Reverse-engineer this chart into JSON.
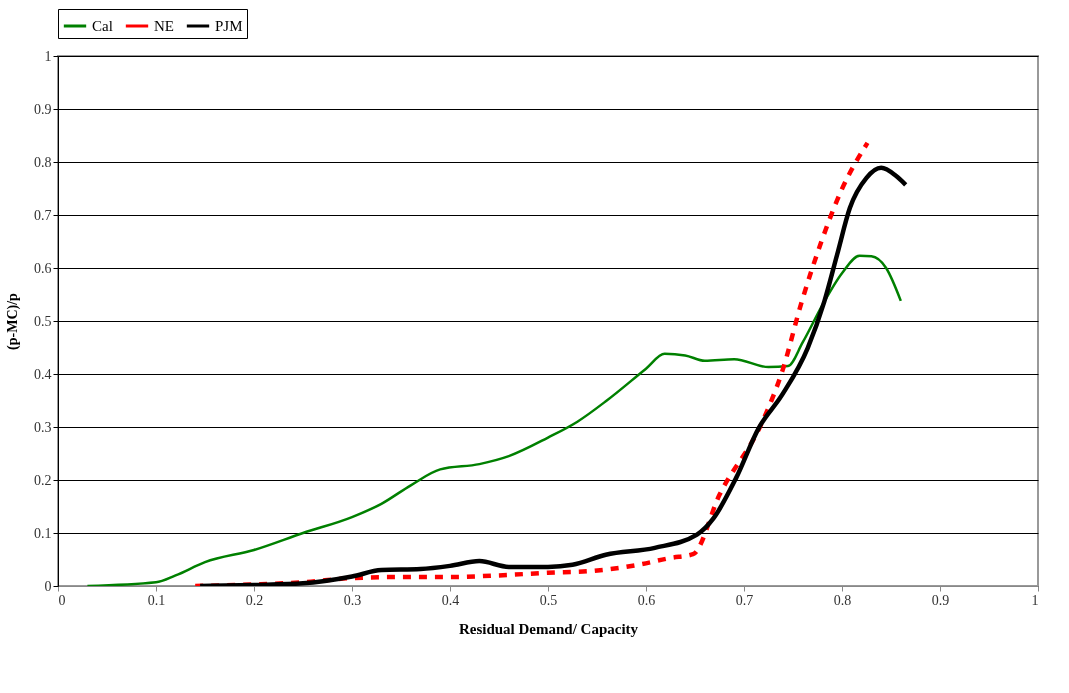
{
  "chart_data": {
    "type": "line",
    "xlabel": "Residual Demand/ Capacity",
    "ylabel": "(p-MC)/p",
    "xlim": [
      0,
      1
    ],
    "ylim": [
      0,
      1
    ],
    "xticks": [
      0,
      0.1,
      0.2,
      0.3,
      0.4,
      0.5,
      0.6,
      0.7,
      0.8,
      0.9,
      1
    ],
    "yticks": [
      0,
      0.1,
      0.2,
      0.3,
      0.4,
      0.5,
      0.6,
      0.7,
      0.8,
      0.9,
      1
    ],
    "grid": "y",
    "legend": "top",
    "marker": "none",
    "series": [
      {
        "name": "Cal",
        "color": "#008000",
        "line_style": "solid",
        "x": [
          0.03,
          0.1,
          0.12,
          0.15,
          0.2,
          0.25,
          0.3,
          0.33,
          0.36,
          0.39,
          0.43,
          0.46,
          0.5,
          0.53,
          0.56,
          0.6,
          0.619,
          0.64,
          0.66,
          0.69,
          0.725,
          0.745,
          0.76,
          0.78,
          0.8,
          0.818,
          0.83,
          0.845,
          0.86
        ],
        "values": [
          0,
          0.007,
          0.02,
          0.045,
          0.068,
          0.1,
          0.13,
          0.155,
          0.19,
          0.22,
          0.23,
          0.245,
          0.28,
          0.31,
          0.35,
          0.41,
          0.438,
          0.435,
          0.425,
          0.428,
          0.413,
          0.415,
          0.46,
          0.53,
          0.59,
          0.623,
          0.622,
          0.6,
          0.538
        ]
      },
      {
        "name": "NE",
        "color": "#ff0000",
        "line_style": "dashed",
        "x": [
          0.14,
          0.2,
          0.25,
          0.3,
          0.35,
          0.4,
          0.45,
          0.5,
          0.542,
          0.592,
          0.625,
          0.648,
          0.675,
          0.719,
          0.739,
          0.759,
          0.779,
          0.799,
          0.826
        ],
        "values": [
          0,
          0.003,
          0.007,
          0.015,
          0.017,
          0.017,
          0.02,
          0.025,
          0.028,
          0.04,
          0.053,
          0.06,
          0.172,
          0.311,
          0.405,
          0.537,
          0.65,
          0.745,
          0.836
        ]
      },
      {
        "name": "PJM",
        "color": "#000000",
        "line_style": "solid",
        "x": [
          0.145,
          0.2,
          0.25,
          0.3,
          0.33,
          0.37,
          0.4,
          0.43,
          0.46,
          0.5,
          0.525,
          0.559,
          0.609,
          0.652,
          0.669,
          0.692,
          0.715,
          0.739,
          0.765,
          0.782,
          0.795,
          0.808,
          0.825,
          0.84,
          0.855,
          0.865
        ],
        "values": [
          0,
          0.002,
          0.005,
          0.018,
          0.03,
          0.032,
          0.038,
          0.047,
          0.036,
          0.036,
          0.04,
          0.059,
          0.072,
          0.097,
          0.128,
          0.204,
          0.298,
          0.361,
          0.449,
          0.537,
          0.625,
          0.713,
          0.77,
          0.789,
          0.774,
          0.757
        ]
      }
    ]
  }
}
